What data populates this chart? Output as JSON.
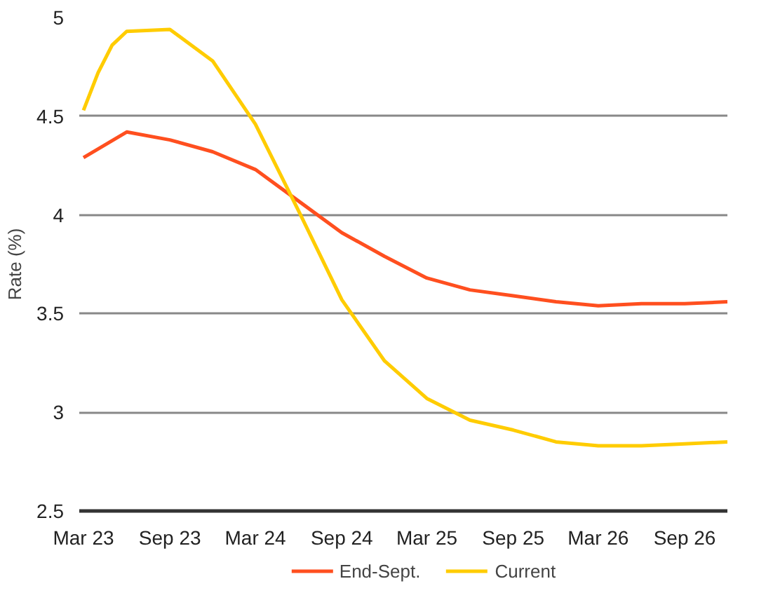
{
  "chart_data": {
    "type": "line",
    "ylabel": "Rate (%)",
    "x": [
      "2023-03",
      "2023-06",
      "2023-09",
      "2023-12",
      "2024-03",
      "2024-06",
      "2024-09",
      "2024-12",
      "2025-03",
      "2025-06",
      "2025-09",
      "2025-12",
      "2026-03",
      "2026-06",
      "2026-09",
      "2026-12"
    ],
    "series": [
      {
        "name": "End-Sept.",
        "color": "#ff4f1f",
        "values": [
          4.29,
          4.42,
          4.38,
          4.32,
          4.23,
          4.07,
          3.91,
          3.79,
          3.68,
          3.62,
          3.59,
          3.56,
          3.54,
          3.55,
          3.55,
          3.56
        ]
      },
      {
        "name": "Current",
        "color": "#ffcc00",
        "x": [
          "2023-03",
          "2023-04",
          "2023-05",
          "2023-06",
          "2023-09",
          "2023-12",
          "2024-03",
          "2024-06",
          "2024-09",
          "2024-12",
          "2025-03",
          "2025-06",
          "2025-09",
          "2025-12",
          "2026-03",
          "2026-06",
          "2026-09",
          "2026-12"
        ],
        "values": [
          4.53,
          4.72,
          4.86,
          4.93,
          4.94,
          4.78,
          4.46,
          4.02,
          3.57,
          3.26,
          3.07,
          2.96,
          2.91,
          2.85,
          2.83,
          2.83,
          2.84,
          2.85
        ]
      }
    ],
    "xlim": [
      "2023-02-20",
      "2026-12"
    ],
    "xticks": [
      {
        "value": "2023-03",
        "label": "Mar 23"
      },
      {
        "value": "2023-09",
        "label": "Sep 23"
      },
      {
        "value": "2024-03",
        "label": "Mar 24"
      },
      {
        "value": "2024-09",
        "label": "Sep 24"
      },
      {
        "value": "2025-03",
        "label": "Mar 25"
      },
      {
        "value": "2025-09",
        "label": "Sep 25"
      },
      {
        "value": "2026-03",
        "label": "Mar 26"
      },
      {
        "value": "2026-09",
        "label": "Sep 26"
      }
    ],
    "ylim": [
      2.5,
      5
    ],
    "yticks": [
      2.5,
      3,
      3.5,
      4,
      4.5,
      5
    ],
    "grid": "y",
    "legend": "bottom",
    "marker": "none",
    "line_style": "solid"
  }
}
